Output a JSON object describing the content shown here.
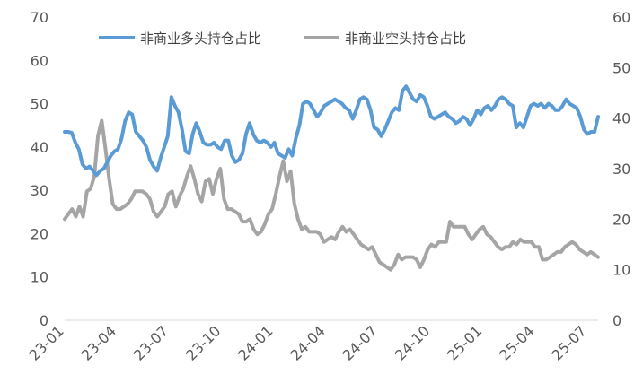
{
  "chart_data": {
    "type": "line",
    "title": "",
    "xlabel": "",
    "ylabel": "",
    "legend_position": "top",
    "grid": false,
    "x_tick_labels": [
      "23-01",
      "23-04",
      "23-07",
      "23-10",
      "24-01",
      "24-04",
      "24-07",
      "24-10",
      "25-01",
      "25-04",
      "25-07"
    ],
    "left_axis": {
      "ticks": [
        "0",
        "10",
        "20",
        "30",
        "40",
        "50",
        "60",
        "70"
      ],
      "ylim": [
        0,
        70
      ]
    },
    "right_axis": {
      "ticks": [
        "0",
        "10",
        "20",
        "30",
        "40",
        "50",
        "60"
      ],
      "ylim": [
        0,
        60
      ]
    },
    "series": [
      {
        "name": "非商业多头持仓占比",
        "axis": "left",
        "color": "#5B9BD5",
        "values": [
          43.5,
          43.5,
          43.3,
          41,
          39.5,
          36,
          35,
          35.5,
          34.5,
          33.5,
          34.5,
          35,
          36.5,
          38,
          39,
          39.5,
          42,
          46,
          48,
          47.5,
          43.5,
          42.5,
          41.5,
          40,
          37,
          35.5,
          34.5,
          37.5,
          40,
          42.5,
          51.5,
          49.5,
          48,
          44,
          39,
          38.5,
          43,
          45.5,
          43.5,
          41,
          40.5,
          40.5,
          41,
          40,
          39.5,
          41.5,
          41.5,
          38,
          36.5,
          37,
          38.5,
          43,
          45.5,
          43,
          41.5,
          41,
          41.5,
          41,
          40,
          41,
          38.5,
          38,
          37.5,
          39.5,
          38,
          42,
          45,
          50,
          50.5,
          50,
          48.5,
          47,
          48,
          49.5,
          50,
          50.5,
          51,
          50.5,
          50,
          49,
          48.5,
          46.5,
          48.5,
          51,
          51.5,
          51,
          48.5,
          44.5,
          44,
          42.5,
          44,
          46,
          48,
          49,
          48.5,
          53,
          54,
          52.5,
          51,
          50.5,
          52,
          51.5,
          49.5,
          47,
          46.5,
          47,
          47.5,
          48,
          47,
          46.5,
          45.5,
          46,
          47,
          46.5,
          45,
          46.5,
          48.5,
          47.5,
          49,
          49.5,
          48.5,
          49.5,
          51,
          51.5,
          51,
          50,
          49.5,
          44.5,
          45.5,
          44.5,
          47,
          49.5,
          50,
          49.5,
          50,
          49,
          50,
          49.5,
          48.5,
          48.5,
          49.5,
          51,
          50,
          49.5,
          49,
          47,
          44,
          43,
          43.5,
          43.5,
          47
        ]
      },
      {
        "name": "非商业空头持仓占比",
        "axis": "right",
        "color": "#A5A5A5",
        "values": [
          20,
          21,
          22,
          20.5,
          22.5,
          20.5,
          25.5,
          26,
          28.5,
          36.5,
          39.5,
          34,
          28,
          23,
          22,
          22,
          22.5,
          23,
          24,
          25.5,
          25.5,
          25.5,
          25,
          24,
          21.5,
          20.5,
          21.5,
          22.5,
          25,
          25.5,
          22.5,
          24.5,
          26,
          28.5,
          30.5,
          28,
          25,
          23.5,
          27.5,
          28,
          25,
          28,
          30,
          24,
          22,
          22,
          21.5,
          21,
          19.5,
          19.5,
          20,
          18,
          17,
          17.5,
          19,
          21,
          22,
          25,
          28.5,
          31.5,
          27.5,
          29.5,
          23,
          20,
          18,
          18.5,
          17.5,
          17.5,
          17.5,
          17,
          15.5,
          16,
          16.5,
          16,
          17.5,
          18.5,
          17.5,
          18,
          17,
          16,
          15,
          14.5,
          14,
          14.5,
          13,
          11.5,
          11,
          10.5,
          10,
          11,
          13,
          12,
          12.5,
          12.5,
          12.5,
          12,
          10.5,
          12,
          14,
          15,
          14.5,
          15.5,
          15.5,
          15.5,
          19.5,
          18.5,
          18.5,
          18.5,
          18.5,
          17,
          16,
          17,
          18,
          18.5,
          17,
          16.5,
          15.5,
          14.5,
          14,
          14.5,
          14.5,
          15.5,
          15,
          16,
          15.5,
          15.5,
          15.5,
          14.5,
          14.5,
          12,
          12,
          12.5,
          13,
          13.5,
          13.5,
          14.5,
          15,
          15.5,
          15,
          14,
          13.5,
          13,
          13.5,
          13,
          12.5
        ]
      }
    ]
  }
}
